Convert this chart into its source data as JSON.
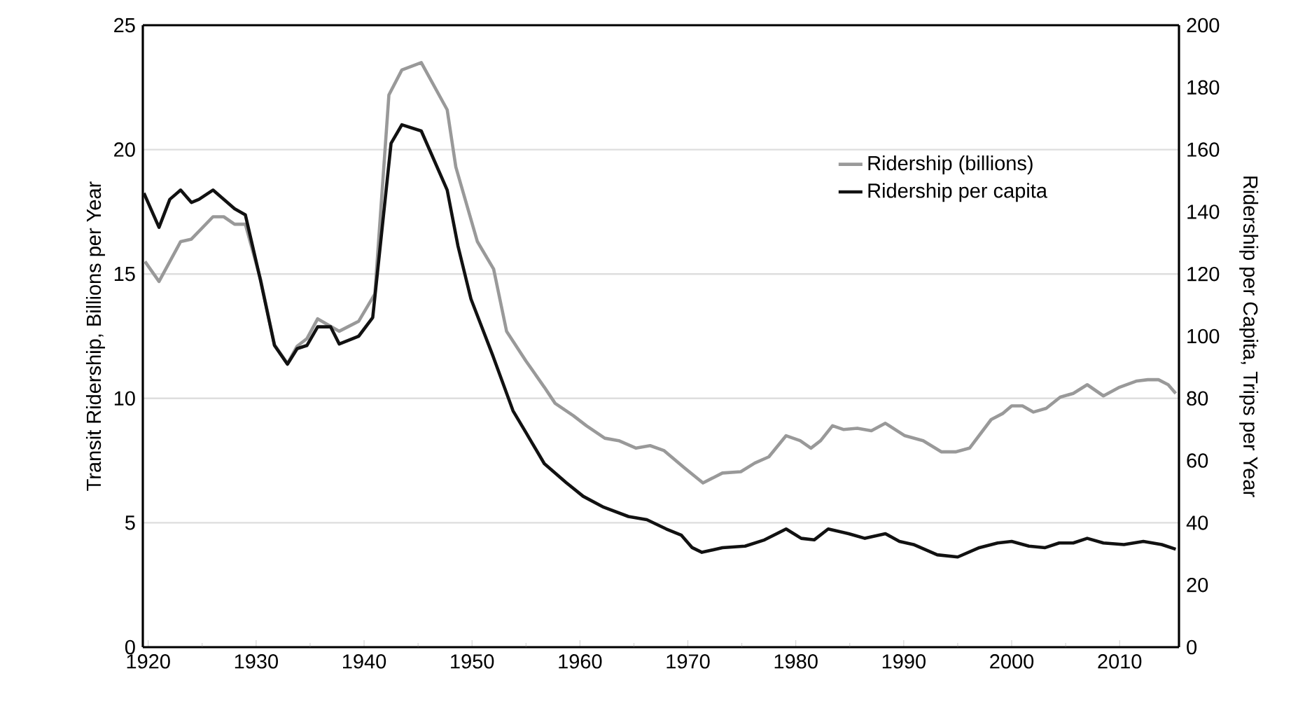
{
  "chart_data": {
    "type": "line",
    "ylabel": "Transit Ridership, Billions per Year",
    "y2label": "Ridership per Capita, Trips per Year",
    "xlim": [
      1919.5,
      2015.5
    ],
    "xticks": [
      1920,
      {
        "value": 1925,
        "label": null
      },
      1930,
      {
        "value": 1935,
        "label": null
      },
      1940,
      {
        "value": 1945,
        "label": null
      },
      1950,
      {
        "value": 1955,
        "label": null
      },
      1960,
      {
        "value": 1965,
        "label": null
      },
      1970,
      {
        "value": 1975,
        "label": null
      },
      1980,
      {
        "value": 1985,
        "label": null
      },
      1990,
      {
        "value": 1995,
        "label": null
      },
      2000,
      {
        "value": 2005,
        "label": null
      },
      2010
    ],
    "ylim": [
      0,
      25
    ],
    "yticks": [
      0,
      5,
      10,
      15,
      20,
      25
    ],
    "y2lim": [
      0,
      200
    ],
    "y2ticks": [
      0,
      20,
      40,
      60,
      80,
      100,
      120,
      140,
      160,
      180,
      200
    ],
    "grid": "y",
    "legend": "top right",
    "series": [
      {
        "name": "Ridership (billions)",
        "color": "#999999",
        "axis": "y",
        "x": [
          1919.7,
          1921,
          1923,
          1924,
          1926,
          1927,
          1928,
          1929,
          1930.4,
          1931.7,
          1932.9,
          1933.8,
          1934.7,
          1935.7,
          1937.7,
          1939.5,
          1941,
          1942.3,
          1943.5,
          1945.3,
          1947.7,
          1948.5,
          1950.5,
          1952,
          1953.2,
          1955,
          1956.7,
          1957.7,
          1959.4,
          1960.6,
          1962.3,
          1963.6,
          1965.2,
          1966.5,
          1967.8,
          1969.7,
          1971.4,
          1973.2,
          1974.9,
          1976.2,
          1977.5,
          1979.1,
          1980.4,
          1981.4,
          1982.3,
          1983.4,
          1984.4,
          1985.7,
          1987,
          1988.3,
          1990.1,
          1991.8,
          1993.5,
          1994.8,
          1996.1,
          1998.1,
          1999.2,
          2000,
          2001,
          2002,
          2003.2,
          2004.5,
          2005.7,
          2007,
          2008.5,
          2010,
          2011.6,
          2012.6,
          2013.6,
          2014.5,
          2015.2
        ],
        "values": [
          15.5,
          14.7,
          16.3,
          16.4,
          17.3,
          17.3,
          17.0,
          17.0,
          14.8,
          12.15,
          11.4,
          12.1,
          12.4,
          13.2,
          12.7,
          13.1,
          14.2,
          22.2,
          23.2,
          23.5,
          21.6,
          19.3,
          16.3,
          15.2,
          12.7,
          11.5,
          10.45,
          9.8,
          9.3,
          8.9,
          8.4,
          8.3,
          8.0,
          8.1,
          7.9,
          7.2,
          6.6,
          7.0,
          7.05,
          7.4,
          7.65,
          8.5,
          8.3,
          8.0,
          8.3,
          8.9,
          8.75,
          8.8,
          8.7,
          9.0,
          8.5,
          8.3,
          7.85,
          7.85,
          8.0,
          9.15,
          9.4,
          9.7,
          9.7,
          9.45,
          9.6,
          10.05,
          10.2,
          10.55,
          10.1,
          10.45,
          10.7,
          10.75,
          10.75,
          10.55,
          10.2
        ]
      },
      {
        "name": "Ridership per capita",
        "color": "#111111",
        "axis": "y2",
        "x": [
          1919.6,
          1921,
          1922,
          1923,
          1924,
          1924.7,
          1926,
          1927,
          1928,
          1929,
          1930.4,
          1931.7,
          1932.9,
          1933.8,
          1934.7,
          1935.7,
          1936.9,
          1937.7,
          1939.5,
          1940.8,
          1942.5,
          1943.5,
          1945.3,
          1947.7,
          1948.7,
          1949.9,
          1951.9,
          1953.8,
          1955,
          1956.7,
          1958.7,
          1960.3,
          1962.2,
          1964.5,
          1966.2,
          1968,
          1969.4,
          1970.4,
          1971.3,
          1973.2,
          1975.3,
          1977.1,
          1979.1,
          1980.5,
          1981.7,
          1983,
          1984.9,
          1986.4,
          1988.3,
          1989.6,
          1990.9,
          1993.1,
          1995,
          1997,
          1998.7,
          2000,
          2001.6,
          2003.1,
          2004.4,
          2005.7,
          2007,
          2008.5,
          2010.4,
          2012.2,
          2013.9,
          2015.2
        ],
        "values": [
          146,
          135,
          144,
          147,
          143,
          144,
          147,
          144,
          141,
          139,
          118,
          97,
          91,
          96,
          97,
          103,
          103,
          97.5,
          100,
          106,
          162,
          168,
          166,
          147,
          129,
          112,
          94,
          76,
          69,
          59,
          53,
          48.5,
          45,
          42,
          41,
          38,
          36,
          32,
          30.5,
          32,
          32.5,
          34.5,
          38,
          35,
          34.5,
          38,
          36.5,
          35,
          36.5,
          34,
          33,
          29.7,
          29,
          32,
          33.5,
          34,
          32.5,
          32,
          33.5,
          33.5,
          35,
          33.5,
          33,
          34,
          33,
          31.5
        ]
      }
    ]
  }
}
